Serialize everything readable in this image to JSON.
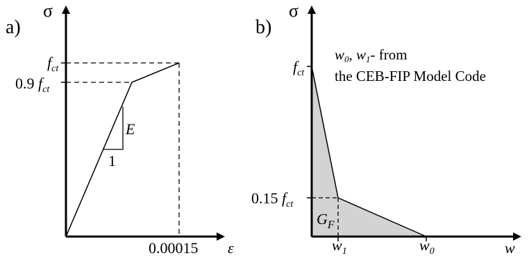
{
  "figure_a": {
    "panel_label": "a)",
    "y_symbol": "σ",
    "x_symbol": "ε",
    "y_tick_top": "f",
    "y_tick_top_sub": "ct",
    "y_tick_mid_prefix": "0.9 ",
    "y_tick_mid": "f",
    "y_tick_mid_sub": "ct",
    "x_tick": "0.00015",
    "slope_label": "E",
    "slope_run_label": "1"
  },
  "figure_b": {
    "panel_label": "b)",
    "y_symbol": "σ",
    "x_symbol": "w",
    "y_tick_top": "f",
    "y_tick_top_sub": "ct",
    "y_tick_low_prefix": "0.15 ",
    "y_tick_low": "f",
    "y_tick_low_sub": "ct",
    "x_tick_1": "w",
    "x_tick_1_sub": "1",
    "x_tick_0": "w",
    "x_tick_0_sub": "0",
    "area_label": "G",
    "area_label_sub": "F",
    "note_line1_w0": "w",
    "note_line1_w0_sub": "0",
    "note_line1_sep": ", ",
    "note_line1_w1": "w",
    "note_line1_w1_sub": "1",
    "note_line1_rest": "- from",
    "note_line2": "the CEB-FIP Model Code",
    "fill_color": "#d3d3d3"
  }
}
